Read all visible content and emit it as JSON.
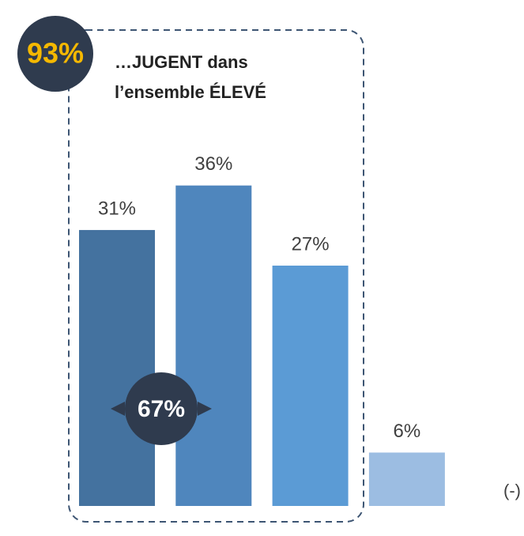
{
  "chart_data": {
    "type": "bar",
    "values": [
      31,
      36,
      27,
      6
    ],
    "value_labels": [
      "31%",
      "36%",
      "27%",
      "6%"
    ],
    "colors": [
      "#44729f",
      "#4f86bd",
      "#5b9bd5",
      "#9cbde2"
    ],
    "annotations": {
      "top_badge": "93%",
      "heading_lines": [
        "…JUGENT dans",
        "l’ensemble ÉLEVÉ"
      ],
      "mid_badge": "67%",
      "side_note": "(-)"
    }
  }
}
